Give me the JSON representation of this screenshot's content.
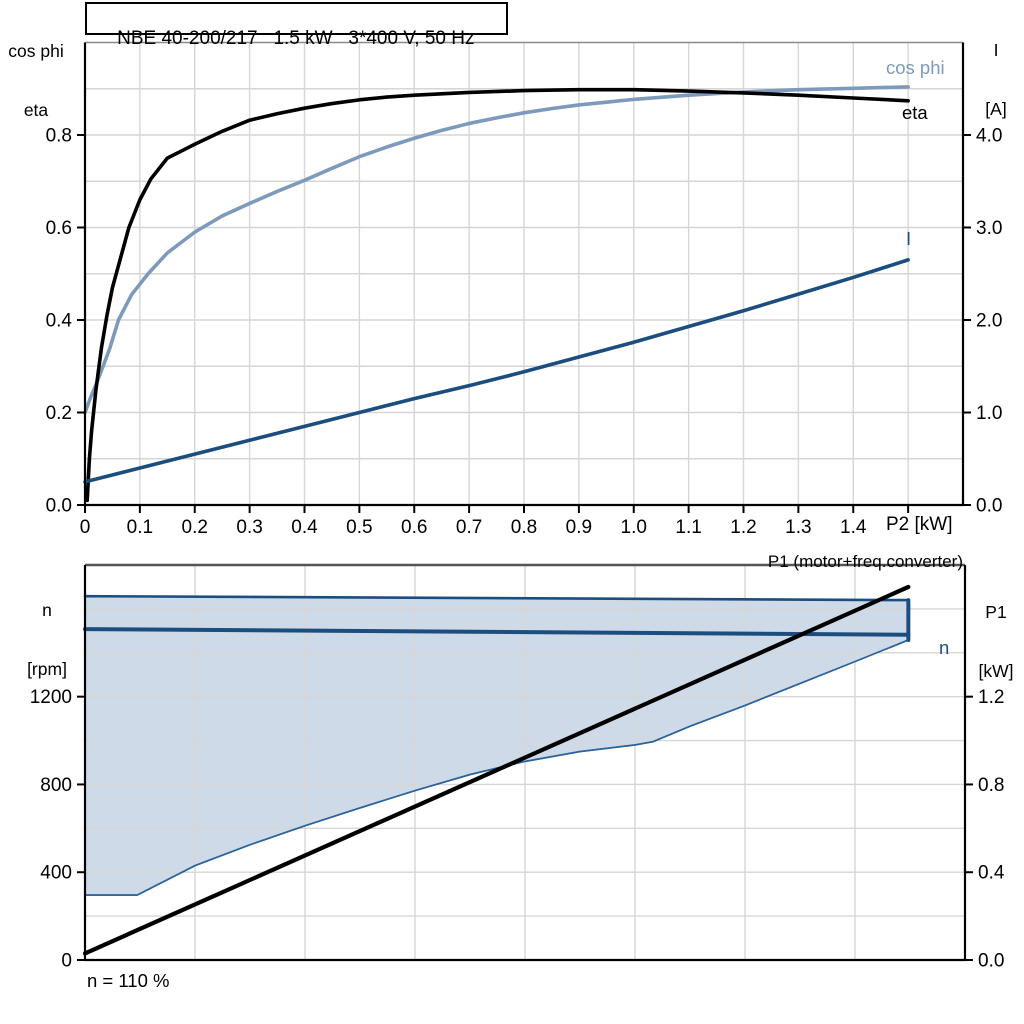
{
  "colors": {
    "eta_curve": "#000000",
    "cos_phi_curve": "#7d9abc",
    "current_curve": "#1b4e7f",
    "speed_curve": "#1b4e7f",
    "speed_upper_limit": "#1b4e7f",
    "speed_lower_limit": "#2c639b",
    "envelope_fill": "#cfdae8",
    "grid": "#d6d6d6",
    "axis": "#000000",
    "top_plot_top_border": "#8a8a8a",
    "bottom_plot_top_border": "#555555"
  },
  "chart_data": [
    {
      "id": "motor-performance",
      "type": "line",
      "title": "NBE 40-200/217   1.5 kW   3*400 V, 50 Hz",
      "grid": true,
      "legend_position": "right-inline",
      "x_axis": {
        "label": "P2 [kW]",
        "min": 0,
        "max": 1.6,
        "ticks": [
          0,
          0.1,
          0.2,
          0.3,
          0.4,
          0.5,
          0.6,
          0.7,
          0.8,
          0.9,
          1.0,
          1.1,
          1.2,
          1.3,
          1.4,
          1.5
        ],
        "tick_labels": [
          "0",
          "0.1",
          "0.2",
          "0.3",
          "0.4",
          "0.5",
          "0.6",
          "0.7",
          "0.8",
          "0.9",
          "1.0",
          "1.1",
          "1.2",
          "1.3",
          "1.4",
          ""
        ]
      },
      "y_left": {
        "title_lines": [
          "cos phi",
          "eta"
        ],
        "min": 0,
        "max": 1.0,
        "grid_step": 0.1,
        "ticks": [
          0,
          0.2,
          0.4,
          0.6,
          0.8
        ],
        "tick_labels": [
          "0.0",
          "0.2",
          "0.4",
          "0.6",
          "0.8"
        ]
      },
      "y_right": {
        "title_lines": [
          "I",
          "[A]"
        ],
        "min": 0,
        "max": 5.0,
        "ticks": [
          0,
          1,
          2,
          3,
          4
        ],
        "tick_labels": [
          "0.0",
          "1.0",
          "2.0",
          "3.0",
          "4.0"
        ]
      },
      "series": [
        {
          "name": "cos phi",
          "axis": "left",
          "color": "#7d9abc",
          "width": 3.6,
          "points": [
            [
              0,
              0.2
            ],
            [
              0.01,
              0.232
            ],
            [
              0.02,
              0.26
            ],
            [
              0.033,
              0.3
            ],
            [
              0.045,
              0.338
            ],
            [
              0.061,
              0.4
            ],
            [
              0.085,
              0.455
            ],
            [
              0.115,
              0.5
            ],
            [
              0.15,
              0.545
            ],
            [
              0.2,
              0.59
            ],
            [
              0.25,
              0.625
            ],
            [
              0.3,
              0.652
            ],
            [
              0.35,
              0.678
            ],
            [
              0.4,
              0.702
            ],
            [
              0.45,
              0.728
            ],
            [
              0.5,
              0.753
            ],
            [
              0.55,
              0.774
            ],
            [
              0.6,
              0.793
            ],
            [
              0.65,
              0.81
            ],
            [
              0.7,
              0.825
            ],
            [
              0.75,
              0.837
            ],
            [
              0.8,
              0.848
            ],
            [
              0.85,
              0.857
            ],
            [
              0.9,
              0.865
            ],
            [
              0.95,
              0.871
            ],
            [
              1.0,
              0.877
            ],
            [
              1.1,
              0.886
            ],
            [
              1.2,
              0.893
            ],
            [
              1.3,
              0.898
            ],
            [
              1.4,
              0.901
            ],
            [
              1.5,
              0.904
            ]
          ]
        },
        {
          "name": "eta",
          "axis": "left",
          "color": "#000000",
          "width": 3.6,
          "points": [
            [
              0.004,
              0.01
            ],
            [
              0.008,
              0.1
            ],
            [
              0.012,
              0.16
            ],
            [
              0.02,
              0.25
            ],
            [
              0.03,
              0.34
            ],
            [
              0.04,
              0.41
            ],
            [
              0.05,
              0.47
            ],
            [
              0.065,
              0.535
            ],
            [
              0.08,
              0.6
            ],
            [
              0.1,
              0.66
            ],
            [
              0.12,
              0.705
            ],
            [
              0.15,
              0.75
            ],
            [
              0.18,
              0.768
            ],
            [
              0.2,
              0.78
            ],
            [
              0.25,
              0.808
            ],
            [
              0.3,
              0.832
            ],
            [
              0.35,
              0.846
            ],
            [
              0.4,
              0.858
            ],
            [
              0.45,
              0.868
            ],
            [
              0.5,
              0.876
            ],
            [
              0.55,
              0.882
            ],
            [
              0.6,
              0.886
            ],
            [
              0.7,
              0.892
            ],
            [
              0.8,
              0.896
            ],
            [
              0.9,
              0.898
            ],
            [
              1.0,
              0.898
            ],
            [
              1.1,
              0.895
            ],
            [
              1.2,
              0.891
            ],
            [
              1.3,
              0.886
            ],
            [
              1.4,
              0.88
            ],
            [
              1.5,
              0.874
            ]
          ]
        },
        {
          "name": "I",
          "axis": "right",
          "color": "#1b4e7f",
          "width": 3.6,
          "points": [
            [
              0,
              0.25
            ],
            [
              0.1,
              0.4
            ],
            [
              0.2,
              0.55
            ],
            [
              0.3,
              0.7
            ],
            [
              0.4,
              0.85
            ],
            [
              0.5,
              1.0
            ],
            [
              0.6,
              1.15
            ],
            [
              0.7,
              1.29
            ],
            [
              0.8,
              1.44
            ],
            [
              0.9,
              1.6
            ],
            [
              1.0,
              1.76
            ],
            [
              1.1,
              1.93
            ],
            [
              1.2,
              2.1
            ],
            [
              1.3,
              2.28
            ],
            [
              1.4,
              2.46
            ],
            [
              1.5,
              2.65
            ]
          ]
        }
      ]
    },
    {
      "id": "speed-and-input-power",
      "type": "line",
      "title": "",
      "grid": true,
      "x_axis": {
        "label": "",
        "min": 0,
        "max": 1.6,
        "grid_step": 0.2
      },
      "y_left": {
        "title_lines": [
          "n",
          "[rpm]"
        ],
        "min": 0,
        "max": 1800,
        "grid_step": 200,
        "ticks": [
          0,
          400,
          800,
          1200
        ],
        "tick_labels": [
          "0",
          "400",
          "800",
          "1200"
        ]
      },
      "y_right": {
        "title_lines": [
          "P1",
          "[kW]"
        ],
        "min": 0,
        "max": 1.8,
        "grid_step": 0.2,
        "ticks": [
          0,
          0.4,
          0.8,
          1.2
        ],
        "tick_labels": [
          "0.0",
          "0.4",
          "0.8",
          "1.2"
        ]
      },
      "series": [
        {
          "name": "P1 (motor+freq.converter)",
          "axis": "right",
          "color": "#000000",
          "width": 4.2,
          "points": [
            [
              0,
              0.03
            ],
            [
              1.497,
              1.7
            ]
          ]
        },
        {
          "name": "n",
          "axis": "left",
          "color": "#1b4e7f",
          "width": 4.0,
          "points": [
            [
              0,
              1508
            ],
            [
              1.497,
              1482
            ]
          ]
        },
        {
          "name": "n-upper-limit",
          "axis": "left",
          "color": "#1b4e7f",
          "width": 2.6,
          "points": [
            [
              0,
              1658
            ],
            [
              1.497,
              1640
            ]
          ]
        },
        {
          "name": "n-lower-limit",
          "axis": "left",
          "color": "#2c639b",
          "width": 1.6,
          "points": [
            [
              0,
              296
            ],
            [
              0.095,
              296
            ],
            [
              0.2,
              430
            ],
            [
              0.3,
              525
            ],
            [
              0.4,
              612
            ],
            [
              0.5,
              693
            ],
            [
              0.6,
              772
            ],
            [
              0.7,
              845
            ],
            [
              0.8,
              905
            ],
            [
              0.9,
              950
            ],
            [
              1.0,
              980
            ],
            [
              1.033,
              995
            ],
            [
              1.1,
              1065
            ],
            [
              1.2,
              1160
            ],
            [
              1.3,
              1260
            ],
            [
              1.4,
              1360
            ],
            [
              1.497,
              1458
            ]
          ]
        },
        {
          "name": "n-range-right-edge",
          "axis": "left",
          "color": "#1b4e7f",
          "width": 4.0,
          "points": [
            [
              1.497,
              1640
            ],
            [
              1.497,
              1458
            ]
          ]
        }
      ],
      "area": {
        "fill": "#cfdae8",
        "upper_series": "n-upper-limit",
        "lower_series": "n-lower-limit"
      },
      "annotations": [
        {
          "text": "n = 110 %"
        }
      ]
    }
  ]
}
